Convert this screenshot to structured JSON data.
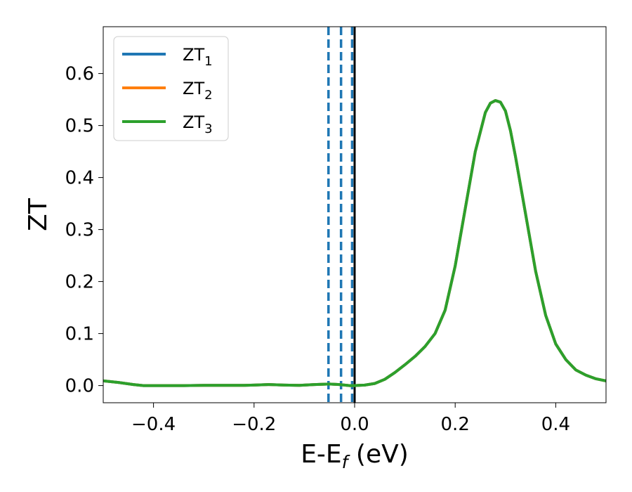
{
  "chart_data": {
    "type": "line",
    "xlabel": "E-E_f (eV)",
    "xlabel_main": "E-E",
    "xlabel_sub": "f",
    "xlabel_unit": " (eV)",
    "ylabel": "ZT",
    "xlim": [
      -0.5,
      0.5
    ],
    "ylim": [
      -0.033,
      0.69
    ],
    "xticks": [
      {
        "value": -0.4,
        "label": "−0.4"
      },
      {
        "value": -0.2,
        "label": "−0.2"
      },
      {
        "value": 0.0,
        "label": "0.0"
      },
      {
        "value": 0.2,
        "label": "0.2"
      },
      {
        "value": 0.4,
        "label": "0.4"
      }
    ],
    "yticks": [
      {
        "value": 0.0,
        "label": "0.0"
      },
      {
        "value": 0.1,
        "label": "0.1"
      },
      {
        "value": 0.2,
        "label": "0.2"
      },
      {
        "value": 0.3,
        "label": "0.3"
      },
      {
        "value": 0.4,
        "label": "0.4"
      },
      {
        "value": 0.5,
        "label": "0.5"
      },
      {
        "value": 0.6,
        "label": "0.6"
      }
    ],
    "grid": false,
    "legend_position": "top-left",
    "x": [
      -0.5,
      -0.47,
      -0.44,
      -0.42,
      -0.38,
      -0.34,
      -0.3,
      -0.26,
      -0.22,
      -0.2,
      -0.17,
      -0.14,
      -0.11,
      -0.08,
      -0.05,
      -0.03,
      -0.01,
      0.0,
      0.02,
      0.04,
      0.06,
      0.08,
      0.1,
      0.12,
      0.14,
      0.16,
      0.18,
      0.2,
      0.22,
      0.24,
      0.26,
      0.27,
      0.28,
      0.29,
      0.3,
      0.31,
      0.32,
      0.34,
      0.36,
      0.38,
      0.4,
      0.42,
      0.44,
      0.46,
      0.48,
      0.5
    ],
    "series": [
      {
        "name": "ZT",
        "name_sub": "1",
        "color": "#1f77b4",
        "values": [
          0.009,
          0.006,
          0.002,
          0.0,
          0.0,
          0.0,
          0.0005,
          0.0005,
          0.0005,
          0.001,
          0.002,
          0.001,
          0.0005,
          0.002,
          0.003,
          0.002,
          0.0,
          0.0,
          0.001,
          0.004,
          0.012,
          0.025,
          0.04,
          0.056,
          0.075,
          0.1,
          0.145,
          0.23,
          0.34,
          0.45,
          0.525,
          0.543,
          0.548,
          0.545,
          0.528,
          0.49,
          0.44,
          0.33,
          0.22,
          0.135,
          0.08,
          0.05,
          0.03,
          0.02,
          0.013,
          0.009
        ]
      },
      {
        "name": "ZT",
        "name_sub": "2",
        "color": "#ff7f0e",
        "values": [
          0.009,
          0.006,
          0.002,
          0.0,
          0.0,
          0.0,
          0.0005,
          0.0005,
          0.0005,
          0.001,
          0.002,
          0.001,
          0.0005,
          0.002,
          0.003,
          0.002,
          0.0,
          0.0,
          0.001,
          0.004,
          0.012,
          0.025,
          0.04,
          0.056,
          0.075,
          0.1,
          0.145,
          0.23,
          0.34,
          0.45,
          0.525,
          0.543,
          0.548,
          0.545,
          0.528,
          0.49,
          0.44,
          0.33,
          0.22,
          0.135,
          0.08,
          0.05,
          0.03,
          0.02,
          0.013,
          0.009
        ]
      },
      {
        "name": "ZT",
        "name_sub": "3",
        "color": "#2ca02c",
        "values": [
          0.009,
          0.006,
          0.002,
          0.0,
          0.0,
          0.0,
          0.0005,
          0.0005,
          0.0005,
          0.001,
          0.002,
          0.001,
          0.0005,
          0.002,
          0.003,
          0.002,
          0.0,
          0.0,
          0.001,
          0.004,
          0.012,
          0.025,
          0.04,
          0.056,
          0.075,
          0.1,
          0.145,
          0.23,
          0.34,
          0.45,
          0.525,
          0.543,
          0.548,
          0.545,
          0.528,
          0.49,
          0.44,
          0.33,
          0.22,
          0.135,
          0.08,
          0.05,
          0.03,
          0.02,
          0.013,
          0.009
        ]
      }
    ],
    "vlines": [
      {
        "x": -0.052,
        "style": "dashed",
        "color": "#1f77b4"
      },
      {
        "x": -0.027,
        "style": "dashed",
        "color": "#1f77b4"
      },
      {
        "x": -0.005,
        "style": "dashed",
        "color": "#1f77b4"
      },
      {
        "x": 0.0,
        "style": "solid",
        "color": "#000000"
      }
    ]
  }
}
